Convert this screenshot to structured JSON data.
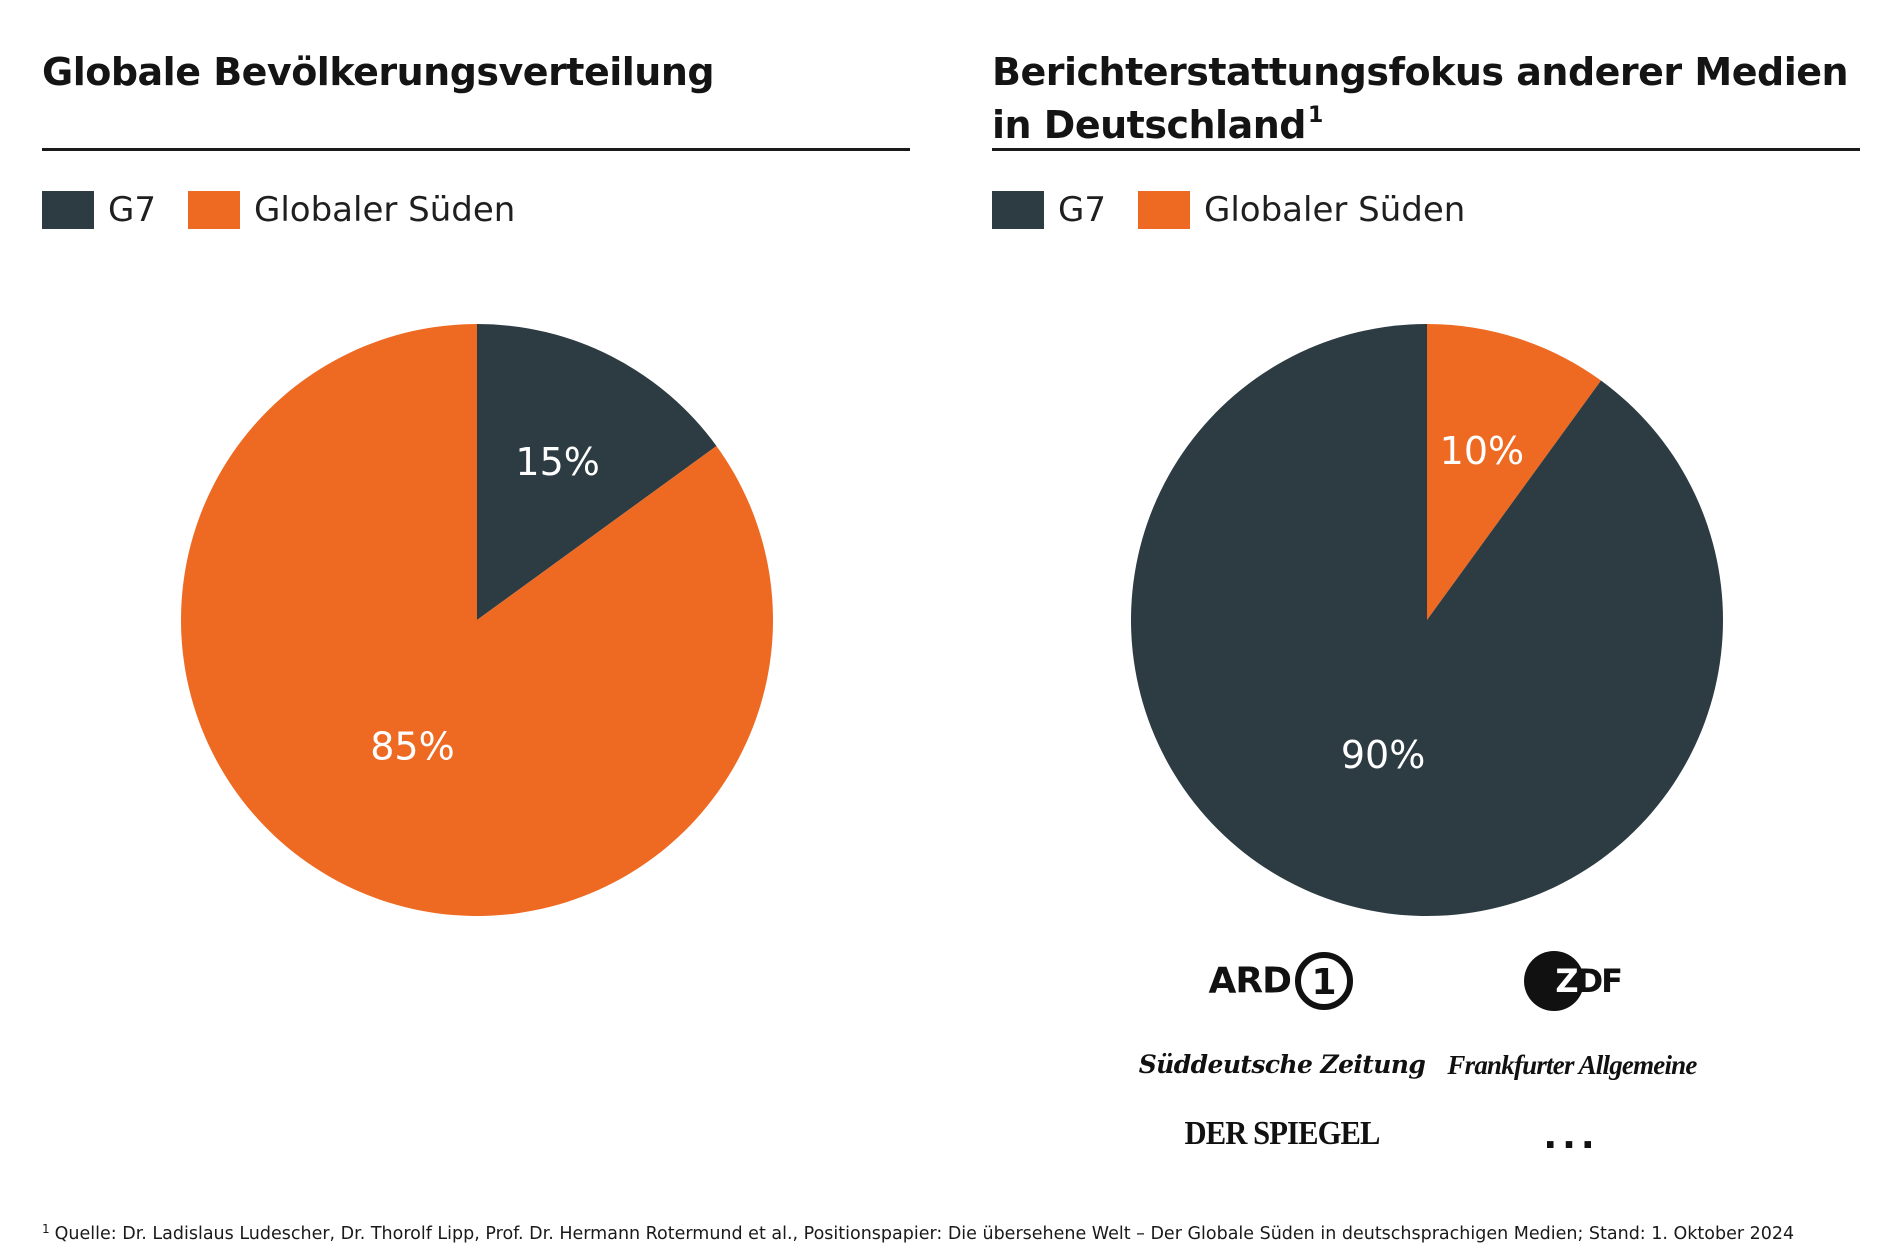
{
  "colors": {
    "g7": "#2d3b42",
    "south": "#ee6a23"
  },
  "chart_data": [
    {
      "type": "pie",
      "title": "Globale Bevölkerungsverteilung",
      "legend": [
        "G7",
        "Globaler Süden"
      ],
      "slices": [
        {
          "name": "G7",
          "value": 15,
          "label": "15%"
        },
        {
          "name": "Globaler Süden",
          "value": 85,
          "label": "85%"
        }
      ]
    },
    {
      "type": "pie",
      "title": "Berichterstattungsfokus anderer Medien in Deutschland",
      "title_footnote": "1",
      "legend": [
        "G7",
        "Globaler Süden"
      ],
      "slices": [
        {
          "name": "Globaler Süden",
          "value": 10,
          "label": "10%"
        },
        {
          "name": "G7",
          "value": 90,
          "label": "90%"
        }
      ]
    }
  ],
  "media_logos": {
    "ard": "ARD",
    "ard_mark": "1",
    "zdf": "ZDF",
    "sz": "Süddeutsche Zeitung",
    "faz": "Frankfurter Allgemeine",
    "spiegel": "DER SPIEGEL",
    "more": "..."
  },
  "footnote": {
    "marker": "1",
    "text": "Quelle: Dr. Ladislaus Ludescher, Dr. Thorolf Lipp, Prof. Dr. Hermann Rotermund et al., Positionspapier: Die übersehene Welt – Der Globale Süden in deutschsprachigen Medien; Stand: 1. Oktober 2024"
  }
}
